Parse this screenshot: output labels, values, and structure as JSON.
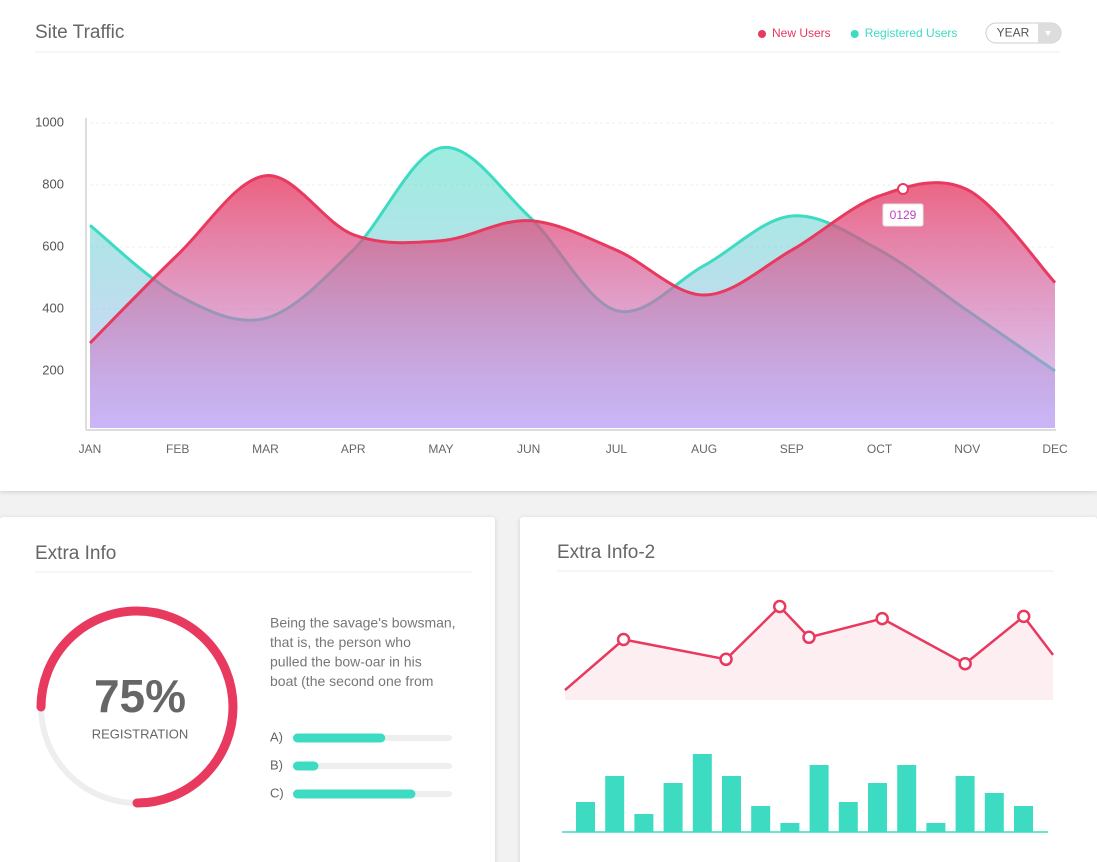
{
  "chart_data": [
    {
      "type": "area",
      "title": "Site Traffic",
      "categories": [
        "JAN",
        "FEB",
        "MAR",
        "APR",
        "MAY",
        "JUN",
        "JUL",
        "AUG",
        "SEP",
        "OCT",
        "NOV",
        "DEC"
      ],
      "series": [
        {
          "name": "New Users",
          "color": "#e8395f",
          "values": [
            290,
            575,
            830,
            640,
            620,
            685,
            590,
            445,
            590,
            765,
            785,
            485
          ]
        },
        {
          "name": "Registered Users",
          "color": "#3ddbc1",
          "values": [
            670,
            445,
            370,
            590,
            920,
            700,
            395,
            540,
            700,
            590,
            395,
            200
          ]
        }
      ],
      "ylim": [
        0,
        1000
      ],
      "yticks": [
        200,
        400,
        600,
        800,
        1000
      ],
      "grid": true,
      "legend": "top-right",
      "annotation": "0129"
    },
    {
      "type": "donut",
      "title": "Extra Info",
      "values": [
        75
      ],
      "value_labels": [
        "75%"
      ],
      "label": "REGISTRATION",
      "color": "#e8395f"
    },
    {
      "type": "progress",
      "categories": [
        "A)",
        "B)",
        "C)"
      ],
      "values": [
        58,
        16,
        77
      ],
      "xlim": [
        0,
        100
      ],
      "color": "#3ddbc1"
    },
    {
      "type": "line",
      "title": "Extra Info-2",
      "x": [
        0,
        12,
        33,
        44,
        50,
        65,
        82,
        94,
        100
      ],
      "values": [
        9,
        55,
        37,
        85,
        57,
        74,
        33,
        76,
        41
      ],
      "xlim": [
        0,
        100
      ],
      "ylim": [
        0,
        100
      ],
      "color": "#e8395f"
    },
    {
      "type": "bar",
      "values": [
        30,
        56,
        18,
        49,
        78,
        56,
        26,
        9,
        67,
        30,
        49,
        67,
        9,
        56,
        39,
        26
      ],
      "ylim": [
        0,
        80
      ],
      "color": "#3ddbc1"
    }
  ],
  "text": {
    "paragraph": [
      "Being the savage's bowsman,",
      "that is, the person who",
      "pulled the bow-oar in his",
      "boat (the second one from"
    ]
  },
  "controls": {
    "period": "YEAR"
  }
}
